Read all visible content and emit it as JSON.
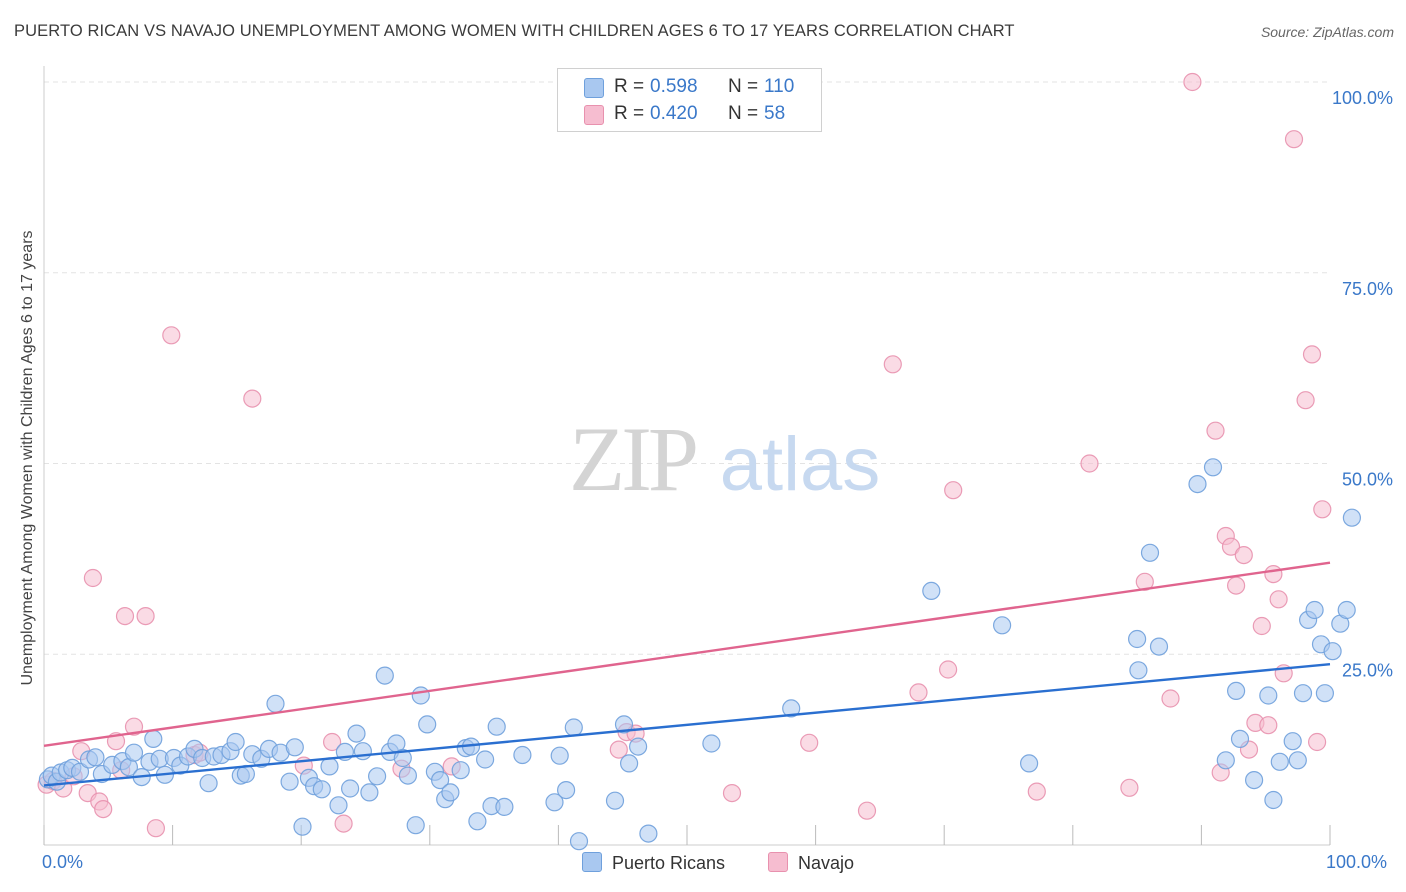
{
  "title": "PUERTO RICAN VS NAVAJO UNEMPLOYMENT AMONG WOMEN WITH CHILDREN AGES 6 TO 17 YEARS CORRELATION CHART",
  "source": "Source: ZipAtlas.com",
  "watermark": {
    "zip": "ZIP",
    "atlas": "atlas"
  },
  "colors": {
    "puerto_rican_fill": "#a9c8f0",
    "puerto_rican_line": "#2a6fd0",
    "navajo_fill": "#f6bdd0",
    "navajo_line": "#e0648e",
    "tick_label": "#3a78c9",
    "grid": "#e3e3e3"
  },
  "legend": {
    "rows": [
      {
        "r_label": "R =",
        "r_value": "0.598",
        "n_label": "N =",
        "n_value": "110",
        "color": "#a9c8f0"
      },
      {
        "r_label": "R =",
        "r_value": "0.420",
        "n_label": "N =",
        "n_value": "58",
        "color": "#f6bdd0"
      }
    ]
  },
  "bottom_legend": [
    {
      "label": "Puerto Ricans",
      "color": "#a9c8f0"
    },
    {
      "label": "Navajo",
      "color": "#f6bdd0"
    }
  ],
  "chart_data": {
    "type": "scatter",
    "title": "PUERTO RICAN VS NAVAJO UNEMPLOYMENT AMONG WOMEN WITH CHILDREN AGES 6 TO 17 YEARS CORRELATION CHART",
    "xlabel": "",
    "ylabel": "Unemployment Among Women with Children Ages 6 to 17 years",
    "xlim": [
      0,
      100
    ],
    "ylim": [
      0,
      100
    ],
    "x_tick_labels": [
      "0.0%",
      "100.0%"
    ],
    "y_tick_labels": [
      "100.0%",
      "75.0%",
      "50.0%",
      "25.0%"
    ],
    "y_ticks": [
      100,
      75,
      50,
      25
    ],
    "grid": true,
    "legend_position": "top-center",
    "series": [
      {
        "name": "Puerto Ricans",
        "r": 0.598,
        "n": 110,
        "trend": {
          "x": [
            0,
            100
          ],
          "y": [
            7.8,
            23.7
          ]
        },
        "points": [
          [
            0.3,
            8.6
          ],
          [
            0.6,
            9.1
          ],
          [
            1.0,
            8.3
          ],
          [
            1.3,
            9.5
          ],
          [
            1.8,
            9.8
          ],
          [
            2.2,
            10.1
          ],
          [
            2.8,
            9.6
          ],
          [
            3.5,
            11.2
          ],
          [
            4.0,
            11.5
          ],
          [
            4.5,
            9.3
          ],
          [
            5.3,
            10.5
          ],
          [
            6.1,
            11.0
          ],
          [
            6.6,
            10.2
          ],
          [
            7.0,
            12.1
          ],
          [
            7.6,
            8.9
          ],
          [
            8.2,
            10.9
          ],
          [
            8.5,
            13.9
          ],
          [
            9.0,
            11.3
          ],
          [
            9.4,
            9.2
          ],
          [
            10.1,
            11.4
          ],
          [
            10.6,
            10.4
          ],
          [
            11.2,
            11.6
          ],
          [
            11.7,
            12.6
          ],
          [
            12.3,
            11.4
          ],
          [
            12.8,
            8.1
          ],
          [
            13.2,
            11.6
          ],
          [
            13.8,
            11.8
          ],
          [
            14.5,
            12.3
          ],
          [
            14.9,
            13.5
          ],
          [
            15.3,
            9.1
          ],
          [
            15.7,
            9.3
          ],
          [
            16.2,
            11.9
          ],
          [
            16.9,
            11.3
          ],
          [
            17.5,
            12.6
          ],
          [
            18.0,
            18.5
          ],
          [
            18.4,
            12.1
          ],
          [
            19.1,
            8.3
          ],
          [
            19.5,
            12.8
          ],
          [
            20.1,
            2.4
          ],
          [
            20.6,
            8.8
          ],
          [
            21.0,
            7.7
          ],
          [
            21.6,
            7.3
          ],
          [
            22.2,
            10.3
          ],
          [
            22.9,
            5.2
          ],
          [
            23.4,
            12.2
          ],
          [
            23.8,
            7.4
          ],
          [
            24.3,
            14.6
          ],
          [
            24.8,
            12.3
          ],
          [
            25.3,
            6.9
          ],
          [
            25.9,
            9.0
          ],
          [
            26.5,
            22.2
          ],
          [
            26.9,
            12.2
          ],
          [
            27.4,
            13.3
          ],
          [
            27.9,
            11.4
          ],
          [
            28.3,
            9.1
          ],
          [
            28.9,
            2.6
          ],
          [
            29.3,
            19.6
          ],
          [
            29.8,
            15.8
          ],
          [
            30.4,
            9.6
          ],
          [
            30.8,
            8.5
          ],
          [
            31.2,
            6.0
          ],
          [
            31.6,
            6.9
          ],
          [
            32.4,
            9.8
          ],
          [
            32.8,
            12.7
          ],
          [
            33.2,
            12.9
          ],
          [
            33.7,
            3.1
          ],
          [
            34.3,
            11.2
          ],
          [
            34.8,
            5.1
          ],
          [
            35.2,
            15.5
          ],
          [
            35.8,
            5.0
          ],
          [
            37.2,
            11.8
          ],
          [
            39.7,
            5.6
          ],
          [
            40.1,
            11.7
          ],
          [
            40.6,
            7.2
          ],
          [
            41.2,
            15.4
          ],
          [
            41.6,
            0.5
          ],
          [
            44.4,
            5.8
          ],
          [
            45.1,
            15.8
          ],
          [
            45.5,
            10.7
          ],
          [
            46.2,
            12.9
          ],
          [
            47.0,
            1.5
          ],
          [
            51.9,
            13.3
          ],
          [
            58.1,
            17.9
          ],
          [
            86.7,
            26.0
          ],
          [
            69.0,
            33.3
          ],
          [
            74.5,
            28.8
          ],
          [
            76.6,
            10.7
          ],
          [
            85.1,
            22.9
          ],
          [
            85.0,
            27.0
          ],
          [
            86.0,
            38.3
          ],
          [
            89.7,
            47.3
          ],
          [
            90.9,
            49.5
          ],
          [
            91.9,
            11.1
          ],
          [
            92.7,
            20.2
          ],
          [
            93.0,
            13.9
          ],
          [
            94.1,
            8.5
          ],
          [
            95.2,
            19.6
          ],
          [
            95.6,
            5.9
          ],
          [
            96.1,
            10.9
          ],
          [
            97.1,
            13.6
          ],
          [
            97.5,
            11.1
          ],
          [
            97.9,
            19.9
          ],
          [
            98.3,
            29.5
          ],
          [
            98.8,
            30.8
          ],
          [
            99.3,
            26.3
          ],
          [
            99.6,
            19.9
          ],
          [
            100.2,
            25.4
          ],
          [
            100.8,
            29.0
          ],
          [
            101.3,
            30.8
          ],
          [
            101.7,
            42.9
          ]
        ]
      },
      {
        "name": "Navajo",
        "r": 0.42,
        "n": 58,
        "trend": {
          "x": [
            0,
            100
          ],
          "y": [
            13.0,
            37.0
          ]
        },
        "points": [
          [
            0.2,
            7.9
          ],
          [
            0.7,
            8.4
          ],
          [
            1.5,
            7.4
          ],
          [
            2.3,
            9.0
          ],
          [
            2.9,
            12.3
          ],
          [
            3.4,
            6.8
          ],
          [
            3.8,
            35.0
          ],
          [
            4.3,
            5.7
          ],
          [
            4.6,
            4.7
          ],
          [
            5.6,
            13.6
          ],
          [
            6.0,
            9.8
          ],
          [
            6.3,
            30.0
          ],
          [
            7.0,
            15.5
          ],
          [
            7.9,
            30.0
          ],
          [
            8.7,
            2.2
          ],
          [
            9.9,
            66.8
          ],
          [
            11.7,
            11.8
          ],
          [
            12.1,
            12.1
          ],
          [
            16.2,
            58.5
          ],
          [
            20.2,
            10.4
          ],
          [
            22.4,
            13.5
          ],
          [
            23.3,
            2.8
          ],
          [
            27.8,
            10.0
          ],
          [
            31.7,
            10.3
          ],
          [
            44.7,
            12.5
          ],
          [
            45.3,
            14.8
          ],
          [
            46.0,
            14.6
          ],
          [
            53.5,
            6.8
          ],
          [
            59.5,
            13.4
          ],
          [
            64.0,
            4.5
          ],
          [
            66.0,
            63.0
          ],
          [
            68.0,
            20.0
          ],
          [
            70.3,
            23.0
          ],
          [
            70.7,
            46.5
          ],
          [
            77.2,
            7.0
          ],
          [
            81.3,
            50.0
          ],
          [
            84.4,
            7.5
          ],
          [
            85.6,
            34.5
          ],
          [
            87.6,
            19.2
          ],
          [
            89.3,
            100.0
          ],
          [
            91.1,
            54.3
          ],
          [
            91.5,
            9.5
          ],
          [
            91.9,
            40.5
          ],
          [
            92.3,
            39.1
          ],
          [
            92.7,
            34.0
          ],
          [
            93.3,
            38.0
          ],
          [
            93.7,
            12.5
          ],
          [
            94.2,
            16.0
          ],
          [
            94.7,
            28.7
          ],
          [
            95.2,
            15.7
          ],
          [
            95.6,
            35.5
          ],
          [
            96.0,
            32.2
          ],
          [
            96.4,
            22.5
          ],
          [
            97.2,
            92.5
          ],
          [
            98.1,
            58.3
          ],
          [
            98.6,
            64.3
          ],
          [
            99.0,
            13.5
          ],
          [
            99.4,
            44.0
          ]
        ]
      }
    ]
  }
}
